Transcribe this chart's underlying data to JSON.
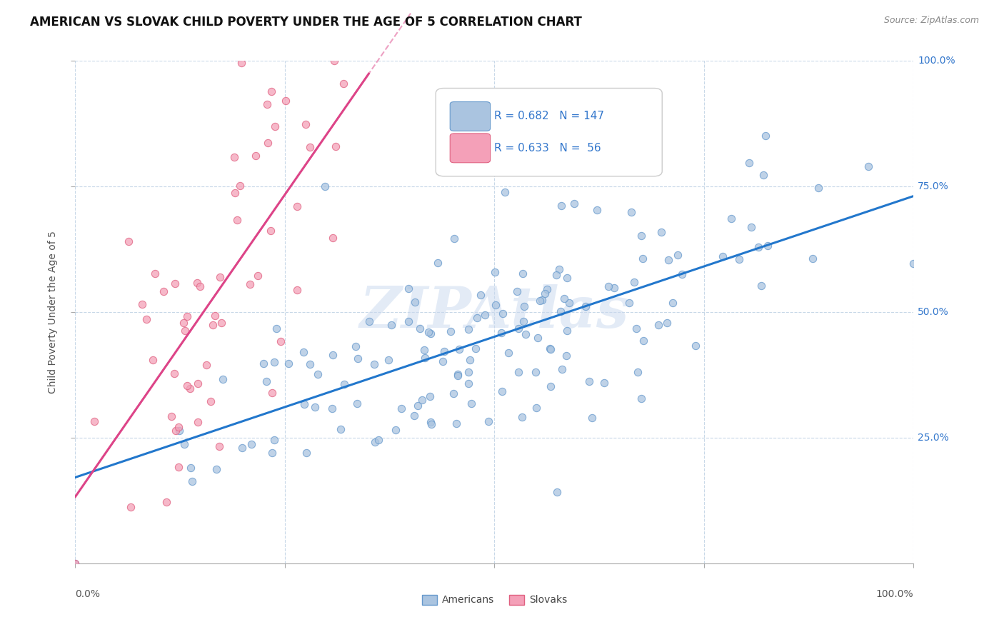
{
  "title": "AMERICAN VS SLOVAK CHILD POVERTY UNDER THE AGE OF 5 CORRELATION CHART",
  "source": "Source: ZipAtlas.com",
  "ylabel": "Child Poverty Under the Age of 5",
  "ytick_labels": [
    "100.0%",
    "75.0%",
    "50.0%",
    "25.0%"
  ],
  "ytick_vals": [
    1.0,
    0.75,
    0.5,
    0.25
  ],
  "legend_am_R": 0.682,
  "legend_am_N": 147,
  "legend_sk_R": 0.633,
  "legend_sk_N": 56,
  "american_face_color": "#aac4e0",
  "american_edge_color": "#6699cc",
  "slovak_face_color": "#f4a0b8",
  "slovak_edge_color": "#e06080",
  "american_line_color": "#2277cc",
  "slovak_line_color": "#dd4488",
  "legend_text_color": "#3377cc",
  "right_tick_color": "#3377cc",
  "watermark_color": "#c8d8ee",
  "grid_color": "#c8d8e8",
  "background_color": "#ffffff",
  "title_fontsize": 12,
  "source_fontsize": 9,
  "legend_fontsize": 11,
  "axis_fontsize": 10,
  "american_seed": 42,
  "slovak_seed": 123
}
